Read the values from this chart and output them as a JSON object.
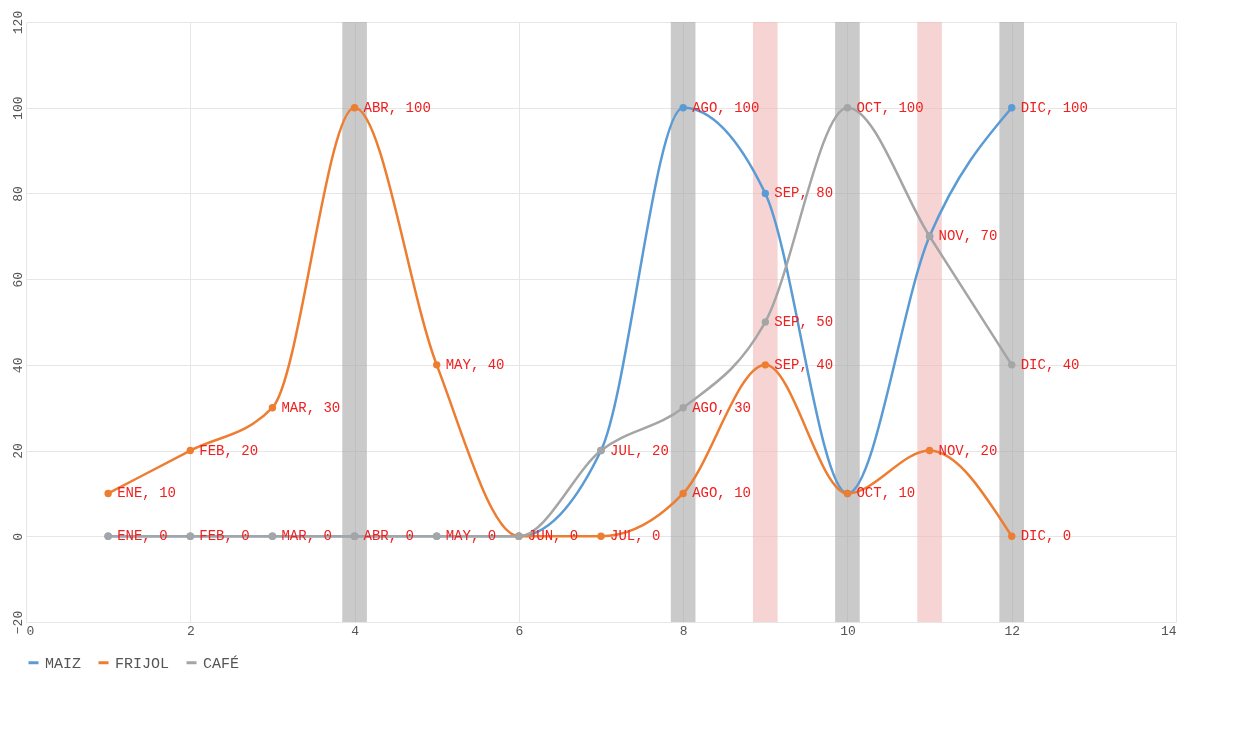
{
  "chart_data": {
    "type": "line",
    "x": [
      1,
      2,
      3,
      4,
      5,
      6,
      7,
      8,
      9,
      10,
      11,
      12
    ],
    "series": [
      {
        "name": "MAIZ",
        "color": "#5b9bd5",
        "values": [
          0,
          0,
          0,
          0,
          0,
          0,
          20,
          100,
          80,
          10,
          70,
          100
        ],
        "value_labels": [
          null,
          null,
          null,
          null,
          null,
          null,
          null,
          "AGO, 100",
          "SEP, 80",
          null,
          null,
          "DIC, 100"
        ]
      },
      {
        "name": "FRIJOL",
        "color": "#ed7d31",
        "values": [
          10,
          20,
          30,
          100,
          40,
          0,
          0,
          10,
          40,
          10,
          20,
          0
        ],
        "value_labels": [
          "ENE, 10",
          "FEB, 20",
          "MAR, 30",
          "ABR, 100",
          "MAY, 40",
          null,
          "JUL, 0",
          "AGO, 10",
          "SEP, 40",
          "OCT, 10",
          "NOV, 20",
          "DIC, 0"
        ]
      },
      {
        "name": "CAFÉ",
        "color": "#a5a5a5",
        "values": [
          0,
          0,
          0,
          0,
          0,
          0,
          20,
          30,
          50,
          100,
          70,
          40
        ],
        "value_labels": [
          "ENE, 0",
          "FEB, 0",
          "MAR, 0",
          "ABR, 0",
          "MAY, 0",
          "JUN, 0",
          "JUL, 20",
          "AGO, 30",
          "SEP, 50",
          "OCT, 100",
          "NOV, 70",
          "DIC, 40"
        ]
      }
    ],
    "bands": [
      {
        "axis": "x",
        "from": 3.85,
        "to": 4.15,
        "color": "#a6a6a6"
      },
      {
        "axis": "x",
        "from": 7.85,
        "to": 8.15,
        "color": "#a6a6a6"
      },
      {
        "axis": "x",
        "from": 8.85,
        "to": 9.15,
        "color": "#f2b8b8"
      },
      {
        "axis": "x",
        "from": 9.85,
        "to": 10.15,
        "color": "#a6a6a6"
      },
      {
        "axis": "x",
        "from": 10.85,
        "to": 11.15,
        "color": "#f2b8b8"
      },
      {
        "axis": "x",
        "from": 11.85,
        "to": 12.15,
        "color": "#a6a6a6"
      }
    ],
    "xlim": [
      0,
      14
    ],
    "xticks": [
      0,
      2,
      4,
      6,
      8,
      10,
      12,
      14
    ],
    "ylim": [
      -20,
      120
    ],
    "yticks": [
      -20,
      0,
      20,
      40,
      60,
      80,
      100,
      120
    ],
    "grid": true,
    "legend": "bottom",
    "marker": "circle",
    "line_style": "solid"
  }
}
